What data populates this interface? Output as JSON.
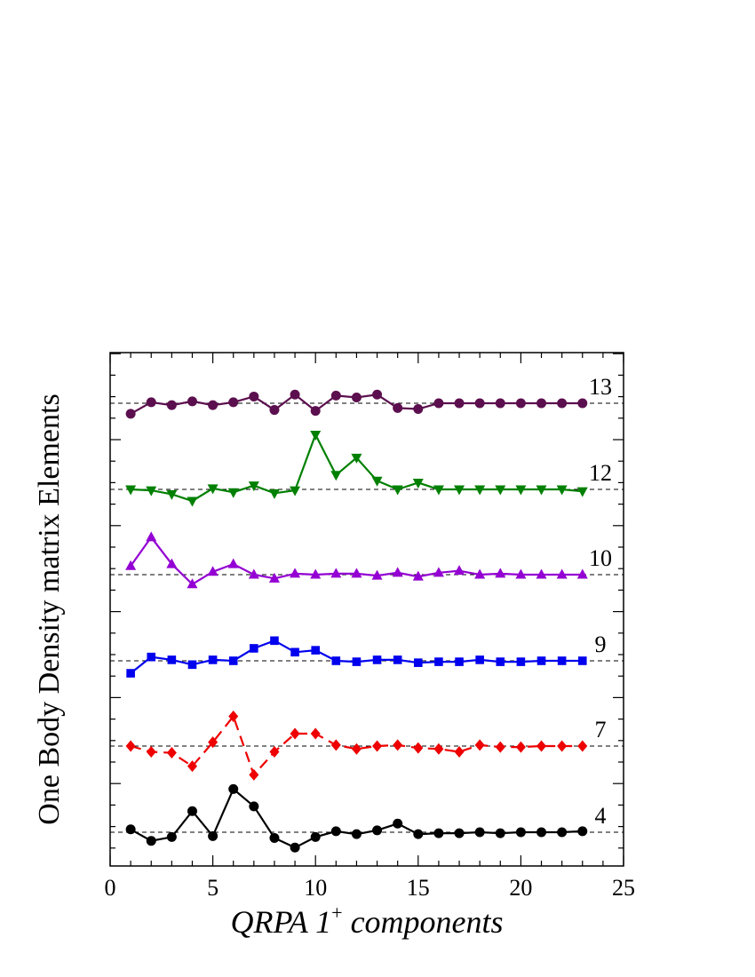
{
  "chart_data": {
    "type": "line",
    "xlabel": "QRPA 1",
    "xlabel_sup": "+",
    "xlabel_tail": " components",
    "ylabel": "One Body Density matrix Elements",
    "xlim": [
      0,
      25
    ],
    "x_ticks": [
      0,
      5,
      10,
      15,
      20,
      25
    ],
    "x": [
      1,
      2,
      3,
      4,
      5,
      6,
      7,
      8,
      9,
      10,
      11,
      12,
      13,
      14,
      15,
      16,
      17,
      18,
      19,
      20,
      21,
      22,
      23
    ],
    "series": [
      {
        "name": "4",
        "color": "#000000",
        "marker": "circle",
        "dashed": false,
        "baseline": 0,
        "values": [
          0.03,
          -0.09,
          -0.05,
          0.22,
          -0.04,
          0.45,
          0.27,
          -0.06,
          -0.16,
          -0.05,
          0.01,
          -0.02,
          0.02,
          0.09,
          -0.02,
          -0.01,
          -0.01,
          0.0,
          -0.01,
          0.0,
          0.0,
          0.0,
          0.01
        ]
      },
      {
        "name": "7",
        "color": "#ee0000",
        "marker": "diamond",
        "dashed": true,
        "baseline": 0,
        "values": [
          0.0,
          -0.06,
          -0.07,
          -0.21,
          0.04,
          0.31,
          -0.3,
          -0.06,
          0.13,
          0.13,
          0.01,
          -0.03,
          0.0,
          0.01,
          -0.02,
          -0.03,
          -0.06,
          0.01,
          -0.01,
          -0.01,
          0.0,
          0.0,
          0.0
        ]
      },
      {
        "name": "9",
        "color": "#0000ee",
        "marker": "square",
        "dashed": false,
        "baseline": 0,
        "values": [
          -0.13,
          0.04,
          0.01,
          -0.04,
          0.01,
          0.0,
          0.13,
          0.21,
          0.09,
          0.11,
          0.0,
          -0.01,
          0.01,
          0.01,
          -0.02,
          -0.01,
          -0.01,
          0.01,
          -0.01,
          -0.01,
          0.0,
          0.0,
          0.0
        ]
      },
      {
        "name": "10",
        "color": "#9400d3",
        "marker": "triangle-up",
        "dashed": false,
        "baseline": 0,
        "values": [
          0.09,
          0.39,
          0.11,
          -0.1,
          0.03,
          0.11,
          0.0,
          -0.04,
          0.01,
          0.0,
          0.01,
          0.01,
          -0.01,
          0.02,
          -0.02,
          0.02,
          0.04,
          0.0,
          0.01,
          0.0,
          0.0,
          0.0,
          0.0
        ]
      },
      {
        "name": "12",
        "color": "#008000",
        "marker": "triangle-down",
        "dashed": false,
        "baseline": 0,
        "values": [
          0.0,
          -0.01,
          -0.05,
          -0.12,
          0.01,
          -0.03,
          0.04,
          -0.04,
          -0.01,
          0.57,
          0.15,
          0.33,
          0.09,
          0.0,
          0.07,
          0.0,
          0.0,
          0.0,
          0.0,
          0.0,
          0.0,
          0.0,
          -0.02
        ]
      },
      {
        "name": "13",
        "color": "#5c0f4e",
        "marker": "circle",
        "dashed": false,
        "baseline": 0,
        "values": [
          -0.11,
          0.01,
          -0.02,
          0.02,
          -0.02,
          0.01,
          0.07,
          -0.07,
          0.09,
          -0.08,
          0.08,
          0.06,
          0.09,
          -0.05,
          -0.06,
          0.0,
          0.0,
          0.0,
          0.0,
          0.0,
          0.0,
          0.0,
          0.0
        ]
      }
    ]
  }
}
